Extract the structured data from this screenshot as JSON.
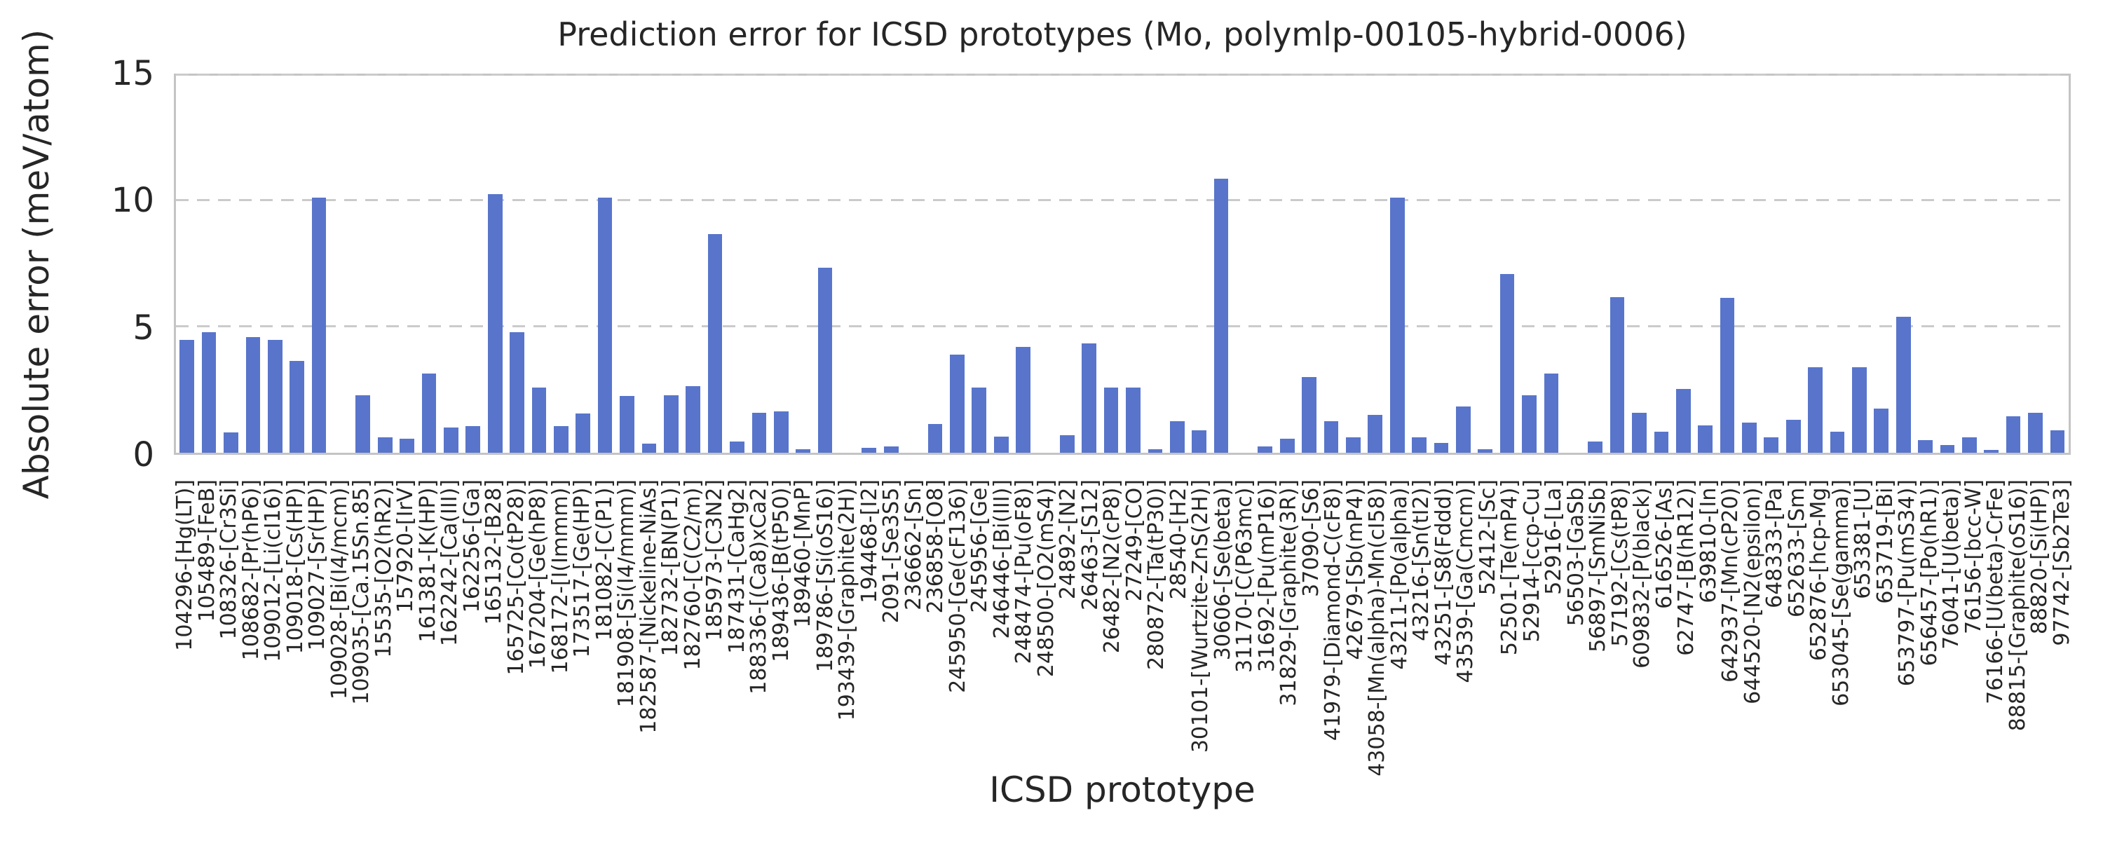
{
  "chart_data": {
    "type": "bar",
    "title": "Prediction error for ICSD prototypes (Mo, polymlp-00105-hybrid-0006)",
    "xlabel": "ICSD prototype",
    "ylabel": "Absolute error (meV/atom)",
    "ylim": [
      0,
      15
    ],
    "yticks": [
      0,
      5,
      10,
      15
    ],
    "grid": "dashed horizontal gridlines at 5, 10, 15",
    "legend": "none",
    "bar_color": "#5875cb",
    "grid_color": "#cbcbcb",
    "spine_color": "#c4c4c4",
    "text_color": "#262626",
    "categories": [
      "104296-[Hg(LT)]",
      "105489-[FeB]",
      "108326-[Cr3Si]",
      "108682-[Pr(hP6)]",
      "109012-[Li(cI16)]",
      "109018-[Cs(HP)]",
      "109027-[Sr(HP)]",
      "109028-[Bi(I4/mcm)]",
      "109035-[Ca.15Sn.85]",
      "15535-[O2(hR2)]",
      "157920-[IrV]",
      "161381-[K(HP)]",
      "162242-[Ca(III)]",
      "162256-[Ga]",
      "165132-[B28]",
      "165725-[Co(tP28)]",
      "167204-[Ge(hP8)]",
      "168172-[I(Immm)]",
      "173517-[Ge(HP)]",
      "181082-[C(P1)]",
      "181908-[Si(I4/mmm)]",
      "182587-[Nickeline-NiAs]",
      "182732-[BN(P1)]",
      "182760-[C(C2/m)]",
      "185973-[C3N2]",
      "187431-[CaHg2]",
      "188336-[(Ca8)xCa2]",
      "189436-[B(tP50)]",
      "189460-[MnP]",
      "189786-[Si(oS16)]",
      "193439-[Graphite(2H)]",
      "194468-[I2]",
      "2091-[Se3S5]",
      "236662-[Sn]",
      "236858-[O8]",
      "245950-[Ge(cF136)]",
      "245956-[Ge]",
      "246446-[Bi(III)]",
      "248474-[Pu(oF8)]",
      "248500-[O2(mS4)]",
      "24892-[N2]",
      "26463-[S12]",
      "26482-[N2(cP8)]",
      "27249-[CO]",
      "280872-[Ta(tP30)]",
      "28540-[H2]",
      "30101-[Wurtzite-ZnS(2H)]",
      "30606-[Se(beta)]",
      "31170-[C(P63mc)]",
      "31692-[Pu(mP16)]",
      "31829-[Graphite(3R)]",
      "37090-[S6]",
      "41979-[Diamond-C(cF8)]",
      "42679-[Sb(mP4)]",
      "43058-[Mn(alpha)-Mn(cI58)]",
      "43211-[Po(alpha)]",
      "43216-[Sn(tI2)]",
      "43251-[S8(Fddd)]",
      "43539-[Ga(Cmcm)]",
      "52412-[Sc]",
      "52501-[Te(mP4)]",
      "52914-[ccp-Cu]",
      "52916-[La]",
      "56503-[GaSb]",
      "56897-[SmNiSb]",
      "57192-[Cs(tP8)]",
      "609832-[P(black)]",
      "616526-[As]",
      "62747-[B(hR12)]",
      "639810-[In]",
      "642937-[Mn(cP20)]",
      "644520-[N2(epsilon)]",
      "648333-[Pa]",
      "652633-[Sm]",
      "652876-[hcp-Mg]",
      "653045-[Se(gamma)]",
      "653381-[U]",
      "653719-[Bi]",
      "653797-[Pu(mS34)]",
      "656457-[Po(hR1)]",
      "76041-[U(beta)]",
      "76156-[bcc-W]",
      "76166-[U(beta)-CrFe]",
      "88815-[Graphite(oS16)]",
      "88820-[Si(HP)]",
      "97742-[Sb2Te3]"
    ],
    "values": [
      4.5,
      4.8,
      0.8,
      4.6,
      4.5,
      3.65,
      10.15,
      0.0,
      2.3,
      0.6,
      0.55,
      3.15,
      1.0,
      1.05,
      10.3,
      4.8,
      2.6,
      1.05,
      1.55,
      10.15,
      2.25,
      0.35,
      2.3,
      2.65,
      8.7,
      0.45,
      1.6,
      1.65,
      0.15,
      7.35,
      0.0,
      0.2,
      0.25,
      0.0,
      1.15,
      3.9,
      2.6,
      0.65,
      4.2,
      0.0,
      0.7,
      4.35,
      2.6,
      2.6,
      0.15,
      1.25,
      0.9,
      10.9,
      0.0,
      0.25,
      0.55,
      3.0,
      1.25,
      0.6,
      1.5,
      10.15,
      0.6,
      0.4,
      1.85,
      0.15,
      7.1,
      2.3,
      3.15,
      0.0,
      0.45,
      6.2,
      1.6,
      0.85,
      2.55,
      1.1,
      6.15,
      1.2,
      0.6,
      1.3,
      3.4,
      0.85,
      3.4,
      1.75,
      5.4,
      0.5,
      0.3,
      0.6,
      0.1,
      1.45,
      1.6,
      0.9
    ]
  }
}
